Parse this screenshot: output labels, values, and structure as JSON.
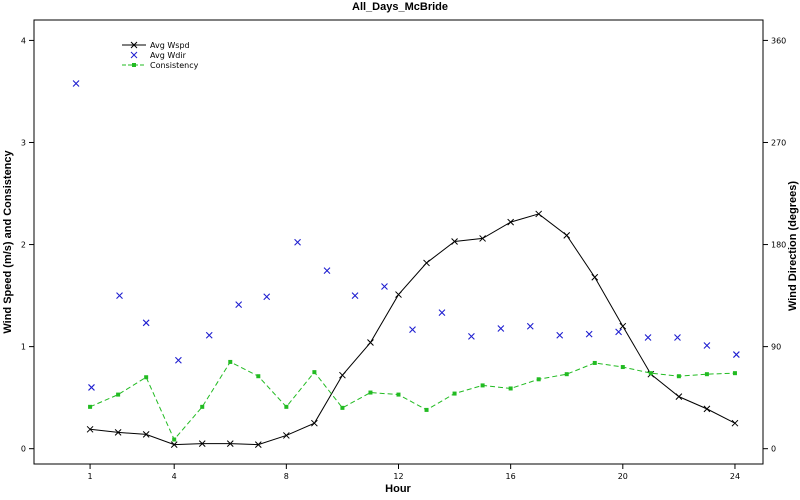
{
  "chart_data": {
    "type": "line",
    "title": "All_Days_McBride",
    "xlabel": "Hour",
    "ylabel_left": "Wind Speed (m/s) and Consistency",
    "ylabel_right": "Wind Direction (degrees)",
    "xlim": [
      -1,
      25
    ],
    "ylim_left": [
      -0.15,
      4.2
    ],
    "ylim_right": [
      0,
      360
    ],
    "x_ticks": [
      1,
      4,
      8,
      12,
      16,
      20,
      24
    ],
    "y_left_ticks": [
      0,
      1,
      2,
      3,
      4
    ],
    "y_right_ticks": [
      0,
      90,
      180,
      270,
      360
    ],
    "grid": false,
    "legend_position": "top-left",
    "series": [
      {
        "name": "Avg Wspd",
        "axis": "left",
        "style": "solid line with x markers",
        "color": "#000000",
        "x": [
          1,
          2,
          3,
          4,
          5,
          6,
          7,
          8,
          9,
          10,
          11,
          12,
          13,
          14,
          15,
          16,
          17,
          18,
          19,
          20,
          21,
          22,
          23,
          24
        ],
        "y": [
          0.19,
          0.16,
          0.14,
          0.04,
          0.05,
          0.05,
          0.04,
          0.13,
          0.25,
          0.72,
          1.04,
          1.51,
          1.82,
          2.03,
          2.06,
          2.22,
          2.3,
          2.09,
          1.68,
          1.2,
          0.73,
          0.51,
          0.39,
          0.25
        ]
      },
      {
        "name": "Avg Wdir",
        "axis": "right",
        "style": "x markers only",
        "color": "#1f1fd0",
        "x": [
          0.5,
          1.05,
          2.05,
          3.0,
          4.15,
          5.25,
          6.3,
          7.3,
          8.4,
          9.45,
          10.45,
          11.5,
          12.5,
          13.55,
          14.6,
          15.65,
          16.7,
          17.75,
          18.8,
          19.85,
          20.9,
          21.95,
          23.0,
          24.05
        ],
        "y": [
          322,
          54,
          135,
          111,
          78,
          100,
          127,
          134,
          182,
          157,
          135,
          143,
          105,
          120,
          99,
          106,
          108,
          100,
          101,
          103,
          98,
          98,
          91,
          83
        ]
      },
      {
        "name": "Consistency",
        "axis": "left",
        "style": "dashed line with square markers",
        "color": "#22bb22",
        "x": [
          1,
          2,
          3,
          4,
          5,
          6,
          7,
          8,
          9,
          10,
          11,
          12,
          13,
          14,
          15,
          16,
          17,
          18,
          19,
          20,
          21,
          22,
          23,
          24
        ],
        "y": [
          0.41,
          0.53,
          0.7,
          0.09,
          0.41,
          0.85,
          0.71,
          0.41,
          0.75,
          0.4,
          0.55,
          0.53,
          0.38,
          0.54,
          0.62,
          0.59,
          0.68,
          0.73,
          0.84,
          0.8,
          0.74,
          0.71,
          0.73,
          0.74
        ]
      }
    ]
  }
}
